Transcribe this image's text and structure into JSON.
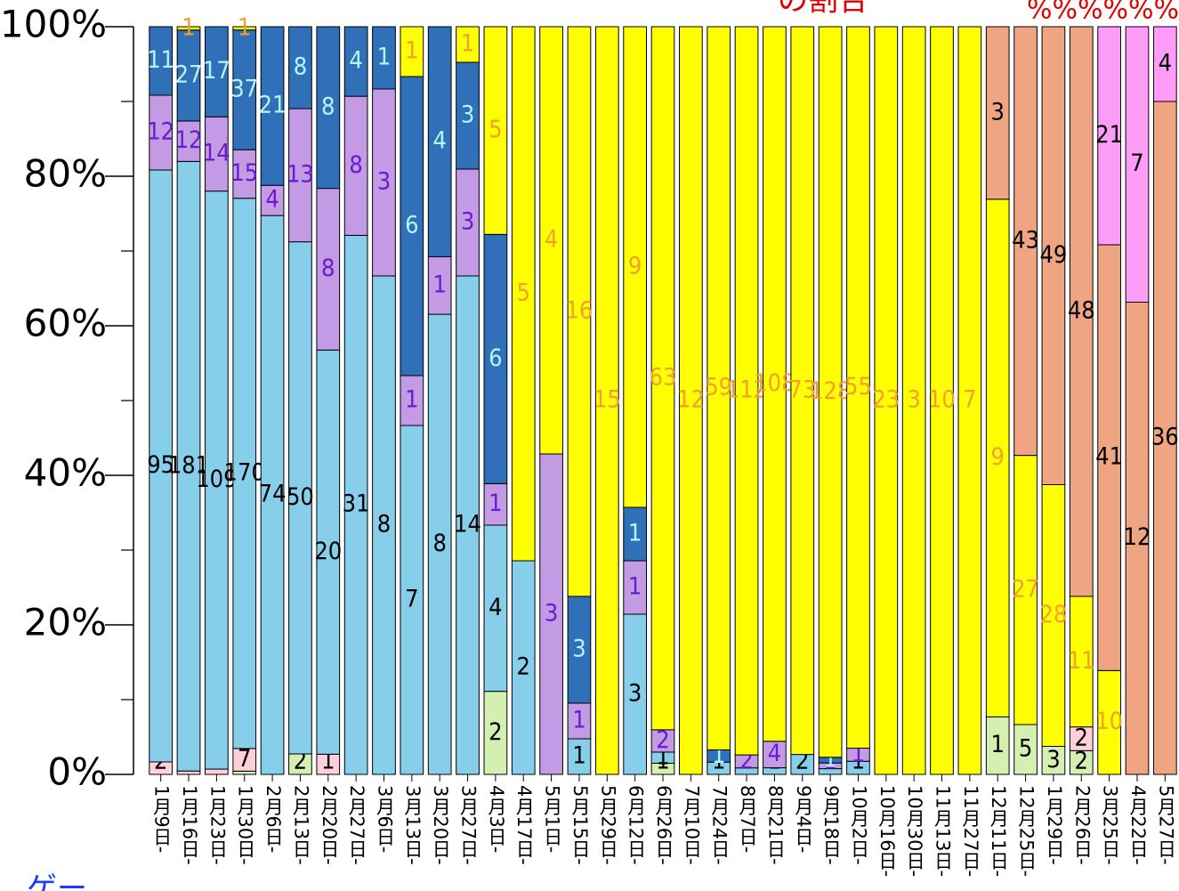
{
  "top_note": "の割合",
  "top_right_note": "%%%%%%",
  "bottom_left_note": "ゲー",
  "chart_data": {
    "type": "stacked_percent_bar",
    "categories": [
      "1月9日-",
      "1月16日-",
      "1月23日-",
      "1月30日-",
      "2月6日-",
      "2月13日-",
      "2月20日-",
      "2月27日-",
      "3月6日-",
      "3月13日-",
      "3月20日-",
      "3月27日-",
      "4月3日-",
      "4月17日-",
      "5月1日-",
      "5月15日-",
      "5月29日-",
      "6月12日-",
      "6月26日-",
      "7月10日-",
      "7月24日-",
      "8月7日-",
      "8月21日-",
      "9月4日-",
      "9月18日-",
      "10月2日-",
      "10月16日-",
      "10月30日-",
      "11月13日-",
      "11月27日-",
      "12月11日-",
      "12月25日-",
      "1月29日-",
      "2月26日-",
      "3月25日-",
      "4月22日-",
      "5月27日-"
    ],
    "series": [
      {
        "color": "#d4f0b0",
        "label_color": "#000000",
        "values": [
          null,
          null,
          null,
          1,
          null,
          2,
          null,
          null,
          null,
          null,
          null,
          null,
          2,
          null,
          null,
          null,
          null,
          null,
          1,
          null,
          null,
          null,
          null,
          null,
          null,
          null,
          null,
          null,
          null,
          null,
          1,
          5,
          3,
          2,
          null,
          null,
          null
        ]
      },
      {
        "color": "#ffd0dc",
        "label_color": "#000000",
        "values": [
          2,
          1,
          1,
          7,
          null,
          null,
          1,
          null,
          null,
          null,
          null,
          null,
          null,
          null,
          null,
          null,
          null,
          null,
          null,
          null,
          null,
          null,
          null,
          null,
          null,
          null,
          null,
          null,
          null,
          null,
          null,
          null,
          null,
          2,
          null,
          null,
          null
        ]
      },
      {
        "color": "#87ceeb",
        "label_color": "#000000",
        "values": [
          95,
          181,
          109,
          170,
          74,
          50,
          20,
          31,
          8,
          7,
          8,
          14,
          4,
          2,
          null,
          1,
          null,
          3,
          1,
          null,
          1,
          1,
          1,
          2,
          1,
          1,
          null,
          null,
          null,
          null,
          null,
          null,
          null,
          null,
          null,
          null,
          null
        ]
      },
      {
        "color": "#c39ae4",
        "label_color": "#6a1bd0",
        "values": [
          12,
          12,
          14,
          15,
          4,
          13,
          8,
          8,
          3,
          1,
          1,
          3,
          1,
          null,
          3,
          1,
          null,
          1,
          2,
          null,
          null,
          2,
          4,
          null,
          1,
          1,
          null,
          null,
          null,
          null,
          null,
          null,
          null,
          null,
          null,
          null,
          null
        ]
      },
      {
        "color": "#2f70b8",
        "label_color": "#b8f4ff",
        "values": [
          11,
          27,
          17,
          37,
          21,
          8,
          8,
          4,
          1,
          6,
          4,
          3,
          6,
          null,
          null,
          3,
          null,
          1,
          null,
          null,
          1,
          null,
          null,
          null,
          1,
          null,
          null,
          null,
          null,
          null,
          null,
          null,
          null,
          null,
          null,
          null,
          null
        ]
      },
      {
        "color": "#ffff00",
        "label_color": "#f0a030",
        "values": [
          null,
          1,
          null,
          1,
          null,
          null,
          null,
          null,
          null,
          1,
          null,
          1,
          5,
          5,
          4,
          16,
          15,
          9,
          63,
          12,
          59,
          112,
          108,
          73,
          128,
          55,
          23,
          3,
          10,
          7,
          9,
          27,
          28,
          11,
          10,
          null,
          null
        ]
      },
      {
        "color": "#f0a582",
        "label_color": "#000000",
        "values": [
          null,
          null,
          null,
          null,
          null,
          null,
          null,
          null,
          null,
          null,
          null,
          null,
          null,
          null,
          null,
          null,
          null,
          null,
          null,
          null,
          null,
          null,
          null,
          null,
          null,
          null,
          null,
          null,
          null,
          null,
          3,
          43,
          49,
          48,
          41,
          12,
          36
        ]
      },
      {
        "color": "#ff9cf8",
        "label_color": "#000000",
        "values": [
          null,
          null,
          null,
          null,
          null,
          null,
          null,
          null,
          null,
          null,
          null,
          null,
          null,
          null,
          null,
          null,
          null,
          null,
          null,
          null,
          null,
          null,
          null,
          null,
          null,
          null,
          null,
          null,
          null,
          null,
          null,
          null,
          null,
          null,
          21,
          7,
          4
        ]
      }
    ],
    "ylim": [
      0,
      100
    ],
    "yticks": [
      {
        "value": 0,
        "label": "0%"
      },
      {
        "value": 20,
        "label": "20%"
      },
      {
        "value": 40,
        "label": "40%"
      },
      {
        "value": 60,
        "label": "60%"
      },
      {
        "value": 80,
        "label": "80%"
      },
      {
        "value": 100,
        "label": "100%"
      }
    ],
    "minor_yticks": [
      10,
      30,
      50,
      70,
      90
    ]
  }
}
